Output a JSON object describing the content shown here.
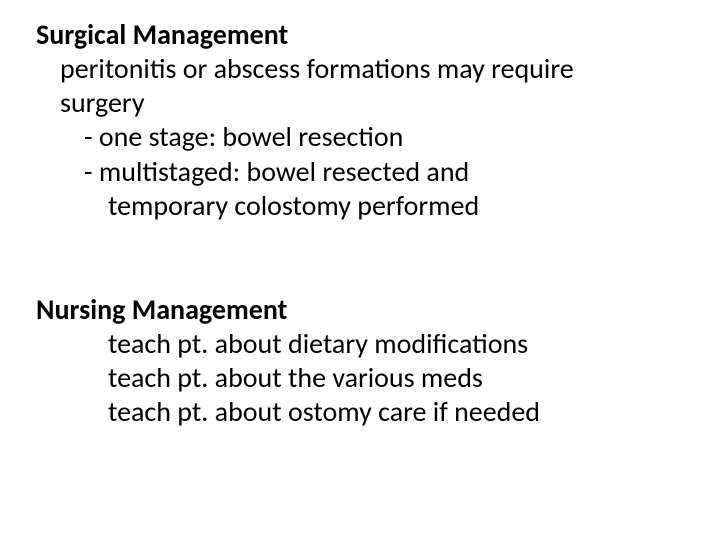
{
  "colors": {
    "background": "#ffffff",
    "text": "#000000"
  },
  "typography": {
    "font_family": "Calibri, sans-serif",
    "font_size_pt": 28,
    "line_height": 1.22,
    "heading_weight": "700",
    "body_weight": "400"
  },
  "sections": {
    "surgical": {
      "heading": "Surgical Management",
      "intro_l1": "peritonitis or abscess formations may require",
      "intro_l2": "surgery",
      "item1": "- one stage: bowel resection",
      "item2_l1": "- multistaged: bowel resected and",
      "item2_l2": "temporary colostomy performed"
    },
    "nursing": {
      "heading": "Nursing Management",
      "item1": "teach pt. about dietary modifications",
      "item2": "teach pt. about the various meds",
      "item3": "teach pt. about ostomy care if needed"
    }
  }
}
